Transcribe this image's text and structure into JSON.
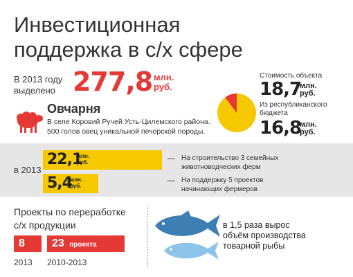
{
  "title_line1": "Инвестиционная",
  "title_line2": "поддержка в с/х сфере",
  "allocated": {
    "prefix_line1": "В 2013 году",
    "prefix_line2": "выделено",
    "value": "277,8",
    "unit_line1": "млн.",
    "unit_line2": "руб."
  },
  "object_cost": {
    "label": "Стоимость объекта",
    "value": "18,7",
    "unit_line1": "млн.",
    "unit_line2": "руб."
  },
  "republic_budget": {
    "label_line1": "Из республиканского",
    "label_line2": "бюджета",
    "value": "16,8",
    "unit_line1": "млн.",
    "unit_line2": "руб.",
    "share": 0.898
  },
  "sheepfold": {
    "heading": "Овчарня",
    "line1": "В селе Коровий Ручей Усть-Цилемского района.",
    "line2": "500 голов овец уникальной печорской породы."
  },
  "band": {
    "year_label": "в 2013",
    "item1_value": "22,1",
    "item1_unit_line1": "млн.",
    "item1_unit_line2": "руб.",
    "item1_dash": "—",
    "item1_text_line1": "На строительство 3 семейных",
    "item1_text_line2": "животноводческих ферм",
    "item2_value": "5,4",
    "item2_unit_line1": "млн.",
    "item2_unit_line2": "руб.",
    "item2_dash": "—",
    "item2_text_line1": "На поддержку 5 проектов",
    "item2_text_line2": "начинающих фермеров"
  },
  "processing": {
    "heading_line1": "Проекты по переработке",
    "heading_line2": "с/х продукции",
    "box1_value": "8",
    "box2_value": "23",
    "box2_unit": "проекта",
    "year1": "2013",
    "year2": "2010-2013"
  },
  "fish": {
    "line1": "в 1,5 раза вырос",
    "line2": "объём производства",
    "line3": "товарной рыбы"
  },
  "colors": {
    "accent_red": "#e53935",
    "accent_yellow": "#f5c800",
    "fish_dark": "#3d7fb3",
    "fish_light": "#8cc4ea"
  }
}
